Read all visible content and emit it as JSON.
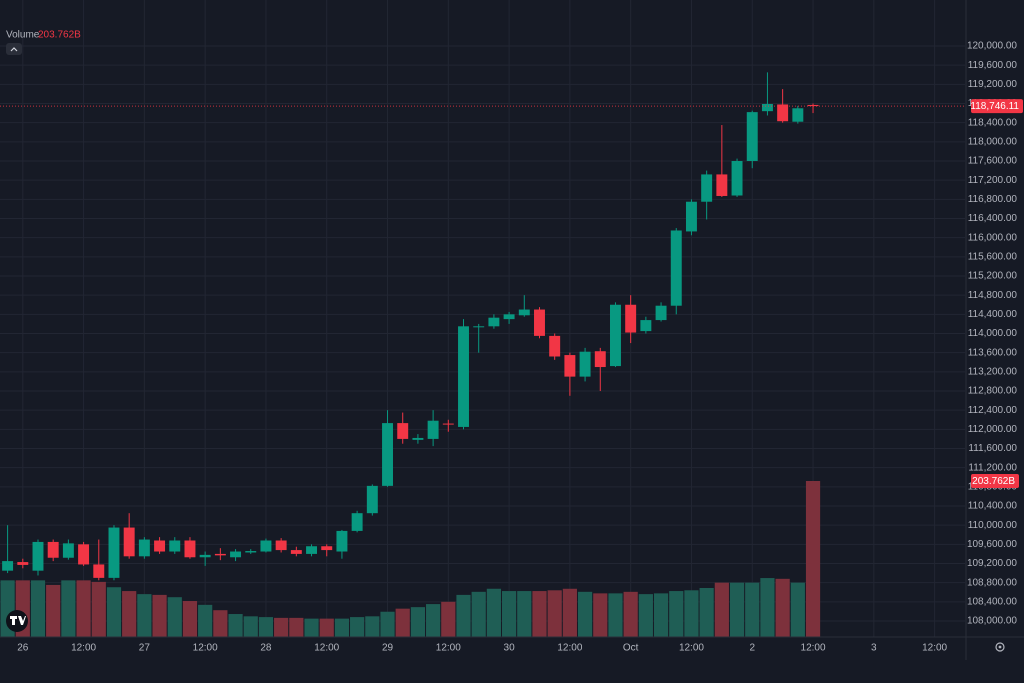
{
  "chart_data": {
    "type": "candlestick",
    "up_color": "#089981",
    "down_color": "#f23645",
    "open": [
      109050,
      109230,
      109050,
      109650,
      109320,
      109600,
      109180,
      108900,
      109950,
      109350,
      109680,
      109450,
      109680,
      109330,
      109400,
      109330,
      109430,
      109450,
      109680,
      109480,
      109400,
      109560,
      109450,
      109880,
      110250,
      110820,
      112130,
      111780,
      111800,
      112120,
      112050,
      114130,
      114150,
      114300,
      114380,
      114500,
      113950,
      113550,
      113100,
      113630,
      113320,
      114600,
      114050,
      114280,
      114580,
      116130,
      116750,
      117320,
      116880,
      117600,
      118640,
      118780,
      118420,
      118770
    ],
    "high": [
      110000,
      109300,
      109700,
      109700,
      109700,
      109650,
      109700,
      110000,
      110250,
      109750,
      109750,
      109750,
      109750,
      109450,
      109520,
      109500,
      109500,
      109720,
      109730,
      109550,
      109600,
      109600,
      109900,
      110300,
      110850,
      112400,
      112350,
      111900,
      112400,
      112200,
      114300,
      114200,
      114400,
      114450,
      114800,
      114550,
      114000,
      113600,
      113700,
      113700,
      114650,
      114800,
      114350,
      114650,
      116200,
      116800,
      117400,
      118350,
      117650,
      118650,
      119450,
      119100,
      118750,
      118800
    ],
    "low": [
      109000,
      109100,
      108950,
      109250,
      109280,
      109150,
      108850,
      108850,
      109300,
      109300,
      109400,
      109400,
      109300,
      109150,
      109270,
      109250,
      109400,
      109430,
      109430,
      109350,
      109350,
      109350,
      109300,
      109850,
      110200,
      110800,
      111700,
      111700,
      111650,
      111950,
      112000,
      113600,
      114100,
      114200,
      114350,
      113900,
      113450,
      112700,
      113000,
      112800,
      113300,
      113800,
      114000,
      114250,
      114400,
      116050,
      116380,
      116850,
      116850,
      117450,
      118550,
      118400,
      118380,
      118600
    ],
    "close": [
      109250,
      109170,
      109650,
      109320,
      109620,
      109180,
      108900,
      109950,
      109350,
      109700,
      109450,
      109680,
      109330,
      109380,
      109370,
      109450,
      109460,
      109680,
      109480,
      109400,
      109560,
      109480,
      109880,
      110250,
      110820,
      112130,
      111800,
      111820,
      112180,
      112100,
      114150,
      114150,
      114330,
      114400,
      114500,
      113950,
      113520,
      113100,
      113620,
      113300,
      114600,
      114020,
      114280,
      114580,
      116150,
      116750,
      117320,
      116870,
      117600,
      118620,
      118790,
      118430,
      118700,
      118746.11
    ],
    "volume": {
      "name": "Volume",
      "up_color": "#1f5e55",
      "down_color": "#7d313c",
      "values": [
        74,
        74,
        74,
        68,
        74,
        74,
        72,
        65,
        60,
        56,
        55,
        52,
        47,
        42,
        35,
        30,
        27,
        26,
        25,
        25,
        24,
        24,
        24,
        26,
        27,
        33,
        37,
        39,
        43,
        46,
        55,
        59,
        63,
        60,
        60,
        60,
        61,
        63,
        59,
        57,
        57,
        59,
        56,
        57,
        60,
        61,
        64,
        71,
        71,
        71,
        77,
        76,
        71,
        203.762
      ]
    },
    "last_volume": {
      "value": 203.762,
      "label": "203.762B"
    },
    "last_price": {
      "value": 118746.11,
      "label": "118,746.11"
    },
    "grid": true,
    "xlim": [
      -0.5,
      63
    ],
    "xticks": [
      {
        "value": 1,
        "label": "26"
      },
      {
        "value": 5,
        "label": "12:00"
      },
      {
        "value": 9,
        "label": "27"
      },
      {
        "value": 13,
        "label": "12:00"
      },
      {
        "value": 17,
        "label": "28"
      },
      {
        "value": 21,
        "label": "12:00"
      },
      {
        "value": 25,
        "label": "29"
      },
      {
        "value": 29,
        "label": "12:00"
      },
      {
        "value": 33,
        "label": "30"
      },
      {
        "value": 37,
        "label": "12:00"
      },
      {
        "value": 41,
        "label": "Oct"
      },
      {
        "value": 45,
        "label": "12:00"
      },
      {
        "value": 49,
        "label": "2"
      },
      {
        "value": 53,
        "label": "12:00"
      },
      {
        "value": 57,
        "label": "3"
      },
      {
        "value": 61,
        "label": "12:00"
      }
    ],
    "ylim": [
      107666,
      120960
    ],
    "yticks": [
      {
        "value": 108000,
        "label": "108,000.00"
      },
      {
        "value": 108400,
        "label": "108,400.00"
      },
      {
        "value": 108800,
        "label": "108,800.00"
      },
      {
        "value": 109200,
        "label": "109,200.00"
      },
      {
        "value": 109600,
        "label": "109,600.00"
      },
      {
        "value": 110000,
        "label": "110,000.00"
      },
      {
        "value": 110400,
        "label": "110,400.00"
      },
      {
        "value": 110800,
        "label": "110,800.00"
      },
      {
        "value": 111200,
        "label": "111,200.00"
      },
      {
        "value": 111600,
        "label": "111,600.00"
      },
      {
        "value": 112000,
        "label": "112,000.00"
      },
      {
        "value": 112400,
        "label": "112,400.00"
      },
      {
        "value": 112800,
        "label": "112,800.00"
      },
      {
        "value": 113200,
        "label": "113,200.00"
      },
      {
        "value": 113600,
        "label": "113,600.00"
      },
      {
        "value": 114000,
        "label": "114,000.00"
      },
      {
        "value": 114400,
        "label": "114,400.00"
      },
      {
        "value": 114800,
        "label": "114,800.00"
      },
      {
        "value": 115200,
        "label": "115,200.00"
      },
      {
        "value": 115600,
        "label": "115,600.00"
      },
      {
        "value": 116000,
        "label": "116,000.00"
      },
      {
        "value": 116400,
        "label": "116,400.00"
      },
      {
        "value": 116800,
        "label": "116,800.00"
      },
      {
        "value": 117200,
        "label": "117,200.00"
      },
      {
        "value": 117600,
        "label": "117,600.00"
      },
      {
        "value": 118000,
        "label": "118,000.00"
      },
      {
        "value": 118400,
        "label": "118,400.00"
      },
      {
        "value": 118800,
        "label": "118,800.00"
      },
      {
        "value": 119200,
        "label": "119,200.00"
      },
      {
        "value": 119600,
        "label": "119,600.00"
      },
      {
        "value": 120000,
        "label": "120,000.00"
      }
    ]
  }
}
